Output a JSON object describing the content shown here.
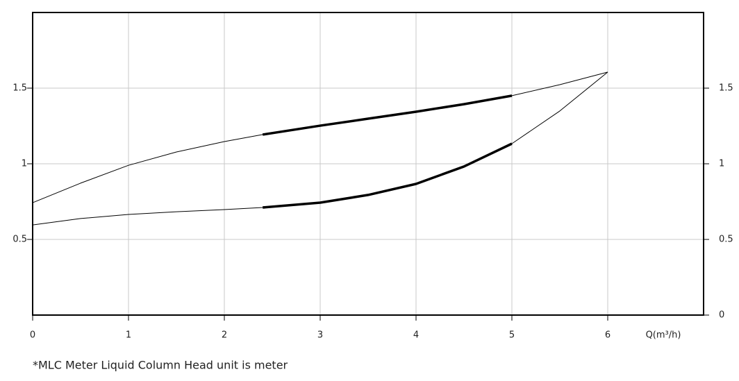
{
  "chart_data": {
    "type": "line",
    "x_label": "Q(m³/h)",
    "note": "*MLC Meter Liquid Column Head unit is meter",
    "xlim": [
      0,
      7
    ],
    "xticks": [
      0,
      1,
      2,
      3,
      4,
      5,
      6
    ],
    "ylim": [
      0,
      2
    ],
    "yticks": [
      0.5,
      1,
      1.5
    ],
    "y2lim": [
      0,
      2
    ],
    "y2ticks": [
      0,
      0.5,
      1,
      1.5
    ],
    "grid": true,
    "series": [
      {
        "color": "#000000",
        "line_width": 1,
        "x": [
          0,
          0.5,
          1,
          1.5,
          2,
          2.4,
          3,
          3.5,
          4,
          4.5,
          5,
          5.5,
          6
        ],
        "values": [
          0.743,
          0.872,
          0.99,
          1.078,
          1.147,
          1.193,
          1.252,
          1.298,
          1.344,
          1.394,
          1.45,
          1.523,
          1.606
        ]
      },
      {
        "color": "#000000",
        "line_width": 1,
        "x": [
          0,
          0.5,
          1,
          1.5,
          2,
          2.4,
          3,
          3.5,
          4,
          4.5,
          5,
          5.5,
          6
        ],
        "values": [
          0.596,
          0.638,
          0.665,
          0.683,
          0.697,
          0.711,
          0.743,
          0.794,
          0.867,
          0.982,
          1.133,
          1.349,
          1.606
        ]
      },
      {
        "color": "#000000",
        "line_width": 3.5,
        "x": [
          2.4,
          3,
          3.5,
          4,
          4.5,
          5
        ],
        "values": [
          1.193,
          1.252,
          1.298,
          1.344,
          1.394,
          1.45
        ]
      },
      {
        "color": "#000000",
        "line_width": 3.5,
        "x": [
          2.4,
          3,
          3.5,
          4,
          4.5,
          5
        ],
        "values": [
          0.711,
          0.743,
          0.794,
          0.867,
          0.982,
          1.133
        ]
      }
    ]
  }
}
